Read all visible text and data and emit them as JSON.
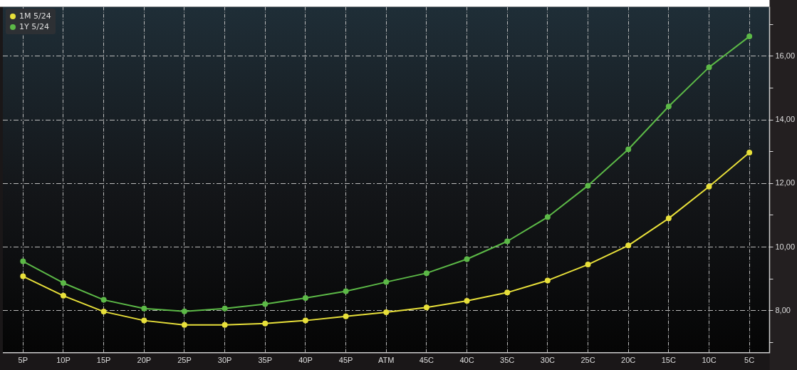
{
  "chart_data": {
    "type": "line",
    "categories": [
      "5P",
      "10P",
      "15P",
      "20P",
      "25P",
      "30P",
      "35P",
      "40P",
      "45P",
      "ATM",
      "45C",
      "40C",
      "35C",
      "30C",
      "25C",
      "20C",
      "15C",
      "10C",
      "5C"
    ],
    "series": [
      {
        "name": "1M 5/24",
        "color": "#e8e03a",
        "values": [
          9.08,
          8.47,
          7.97,
          7.69,
          7.55,
          7.55,
          7.6,
          7.69,
          7.82,
          7.95,
          8.1,
          8.31,
          8.57,
          8.95,
          9.45,
          10.05,
          10.9,
          11.9,
          12.97
        ]
      },
      {
        "name": "1Y 5/24",
        "color": "#5cb947",
        "values": [
          9.55,
          8.87,
          8.34,
          8.07,
          7.98,
          8.07,
          8.21,
          8.4,
          8.61,
          8.9,
          9.18,
          9.62,
          10.18,
          10.94,
          11.93,
          13.07,
          14.42,
          15.65,
          16.62
        ]
      }
    ],
    "ylim": [
      6.7,
      17.55
    ],
    "yticks": [
      {
        "value": 7,
        "label": null
      },
      {
        "value": 8,
        "label": "8,00"
      },
      {
        "value": 9,
        "label": null
      },
      {
        "value": 10,
        "label": "10,00"
      },
      {
        "value": 11,
        "label": null
      },
      {
        "value": 12,
        "label": "12,00"
      },
      {
        "value": 13,
        "label": null
      },
      {
        "value": 14,
        "label": "14,00"
      },
      {
        "value": 15,
        "label": null
      },
      {
        "value": 16,
        "label": "16,00"
      },
      {
        "value": 17,
        "label": null
      }
    ],
    "grid": true,
    "legend": "top left",
    "marker": "circle",
    "line_style": "solid"
  }
}
